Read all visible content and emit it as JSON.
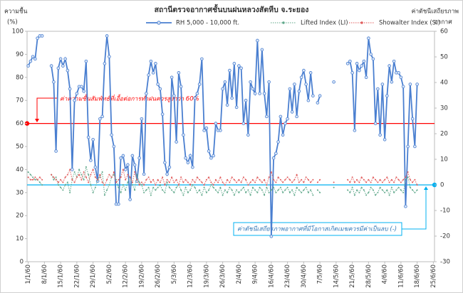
{
  "chart_data": {
    "type": "line",
    "title": "สถานีตรวจอากาศชั้นบนฝนหลวงสัตหีบ จ.ระยอง",
    "y_label": [
      "ความชื้น",
      "(%)"
    ],
    "y2_label": [
      "ค่าดัชนีเสถียรภาพ",
      "อากาศ"
    ],
    "categories": [
      "1/1/60",
      null,
      null,
      null,
      null,
      null,
      null,
      "8/1/60",
      null,
      null,
      null,
      null,
      null,
      null,
      "15/1/60",
      null,
      null,
      null,
      null,
      null,
      null,
      "22/1/60",
      null,
      null,
      null,
      null,
      null,
      null,
      "29/1/60",
      null,
      null,
      null,
      null,
      null,
      null,
      "5/2/60",
      null,
      null,
      null,
      null,
      null,
      null,
      "12/2/60",
      null,
      null,
      null,
      null,
      null,
      null,
      "19/2/60",
      null,
      null,
      null,
      null,
      null,
      null,
      "26/2/60",
      null,
      null,
      null,
      null,
      null,
      null,
      "5/3/60",
      null,
      null,
      null,
      null,
      null,
      null,
      "12/3/60",
      null,
      null,
      null,
      null,
      null,
      null,
      "19/3/60",
      null,
      null,
      null,
      null,
      null,
      null,
      "26/3/60",
      null,
      null,
      null,
      null,
      null,
      null,
      "2/4/60",
      null,
      null,
      null,
      null,
      null,
      null,
      "9/4/60",
      null,
      null,
      null,
      null,
      null,
      null,
      "16/4/60",
      null,
      null,
      null,
      null,
      null,
      null,
      "23/4/60",
      null,
      null,
      null,
      null,
      null,
      null,
      "30/4/60",
      null,
      null,
      null,
      null,
      null,
      null,
      "7/5/60",
      null,
      null,
      null,
      null,
      null,
      null,
      "14/5/60",
      null,
      null,
      null,
      null,
      null,
      null,
      "21/5/60",
      null,
      null,
      null,
      null,
      null,
      null,
      "28/5/60",
      null,
      null,
      null,
      null,
      null,
      null,
      "4/6/60",
      null,
      null,
      null,
      null,
      null,
      null,
      "11/6/60",
      null,
      null,
      null,
      null,
      null,
      null,
      "18/6/60",
      null,
      null,
      null,
      null,
      null,
      null,
      "25/6/60"
    ],
    "series": [
      {
        "name": "RH 5,000 - 10,000 ft.",
        "color": "#4a7fd0",
        "style": "solid",
        "axis": "y",
        "values": [
          85,
          87,
          89,
          88,
          97,
          98,
          98,
          null,
          null,
          null,
          85,
          78,
          48,
          84,
          88,
          85,
          88,
          83,
          75,
          40,
          70,
          73,
          76,
          76,
          74,
          87,
          54,
          44,
          53,
          41,
          35,
          62,
          63,
          86,
          98,
          89,
          55,
          50,
          25,
          25,
          45,
          46,
          40,
          42,
          27,
          46,
          42,
          35,
          45,
          62,
          38,
          73,
          81,
          87,
          82,
          86,
          77,
          75,
          64,
          43,
          38,
          41,
          80,
          72,
          52,
          82,
          76,
          55,
          45,
          43,
          46,
          41,
          71,
          73,
          77,
          88,
          57,
          58,
          48,
          45,
          46,
          60,
          57,
          57,
          75,
          78,
          68,
          83,
          71,
          86,
          67,
          85,
          84,
          60,
          70,
          55,
          78,
          75,
          73,
          96,
          73,
          92,
          73,
          63,
          78,
          11,
          45,
          47,
          52,
          63,
          55,
          60,
          62,
          75,
          65,
          77,
          63,
          74,
          80,
          83,
          77,
          70,
          82,
          72,
          null,
          69,
          72,
          null,
          null,
          null,
          null,
          null,
          78,
          null,
          null,
          null,
          null,
          null,
          86,
          87,
          82,
          57,
          86,
          83,
          85,
          87,
          80,
          97,
          90,
          88,
          60,
          75,
          55,
          77,
          53,
          72,
          85,
          78,
          87,
          82,
          82,
          80,
          76,
          24,
          50,
          77,
          62,
          50,
          77,
          null,
          null,
          null,
          null,
          null,
          null,
          null
        ]
      },
      {
        "name": "Lifted Index (LI)",
        "color": "#5fa88a",
        "style": "dotted",
        "axis": "y2",
        "values": [
          5,
          4,
          3,
          2,
          2,
          1,
          0,
          null,
          null,
          null,
          4,
          2,
          3,
          0,
          -1,
          -2,
          0,
          1,
          -3,
          2,
          5,
          3,
          6,
          4,
          2,
          7,
          4,
          0,
          -3,
          -1,
          2,
          3,
          5,
          -4,
          -2,
          0,
          3,
          4,
          2,
          -1,
          -3,
          0,
          -2,
          1,
          3,
          0,
          -2,
          4,
          1,
          0,
          -3,
          -2,
          -1,
          -4,
          -1,
          -2,
          -1,
          0,
          -2,
          -3,
          1,
          -1,
          -2,
          -3,
          -1,
          0,
          -2,
          -4,
          -1,
          -3,
          -2,
          0,
          -1,
          -3,
          -2,
          -4,
          -1,
          -3,
          -2,
          0,
          -1,
          -2,
          -3,
          -1,
          -4,
          -2,
          -3,
          -1,
          -2,
          -4,
          -2,
          -3,
          -2,
          -1,
          -3,
          -2,
          -4,
          -1,
          -2,
          -3,
          -1,
          -2,
          -4,
          -1,
          -3,
          -2,
          -1,
          -3,
          -2,
          -1,
          -3,
          -2,
          -1,
          -3,
          -2,
          -4,
          -1,
          -2,
          -3,
          -2,
          -1,
          -3,
          -2,
          -4,
          null,
          -2,
          -3,
          null,
          null,
          null,
          null,
          null,
          -1,
          null,
          null,
          null,
          null,
          null,
          -2,
          -3,
          -1,
          -4,
          -2,
          -3,
          -1,
          -2,
          -4,
          -3,
          -1,
          -2,
          -4,
          -3,
          -1,
          -2,
          -3,
          -2,
          -4,
          -1,
          -3,
          -2,
          -1,
          -2,
          -3,
          2,
          3,
          -1,
          -2,
          -3,
          -2,
          null,
          null,
          null,
          null,
          null,
          null,
          null
        ]
      },
      {
        "name": "Showalter Index (SI)",
        "color": "#e05a5a",
        "style": "dotted",
        "axis": "y2",
        "values": [
          3,
          2,
          2,
          3,
          2,
          3,
          2,
          null,
          null,
          null,
          4,
          3,
          2,
          1,
          2,
          1,
          3,
          4,
          6,
          2,
          1,
          3,
          4,
          2,
          5,
          3,
          1,
          4,
          6,
          3,
          2,
          4,
          1,
          0,
          2,
          4,
          3,
          5,
          1,
          2,
          3,
          6,
          2,
          4,
          3,
          1,
          5,
          2,
          0,
          1,
          0,
          2,
          3,
          1,
          2,
          0,
          2,
          1,
          3,
          0,
          2,
          1,
          3,
          1,
          2,
          0,
          3,
          1,
          2,
          1,
          0,
          2,
          1,
          3,
          2,
          1,
          0,
          2,
          3,
          1,
          0,
          2,
          1,
          3,
          1,
          0,
          2,
          1,
          3,
          2,
          1,
          2,
          1,
          3,
          2,
          0,
          1,
          2,
          1,
          3,
          2,
          1,
          2,
          0,
          3,
          5,
          2,
          1,
          3,
          2,
          1,
          2,
          3,
          2,
          1,
          2,
          4,
          1,
          2,
          1,
          3,
          2,
          1,
          2,
          null,
          1,
          2,
          null,
          null,
          null,
          null,
          null,
          1,
          null,
          null,
          null,
          null,
          null,
          2,
          1,
          3,
          1,
          2,
          1,
          3,
          2,
          1,
          2,
          1,
          3,
          2,
          1,
          2,
          1,
          2,
          3,
          1,
          2,
          1,
          3,
          2,
          1,
          2,
          3,
          5,
          2,
          1,
          2,
          0,
          null,
          null,
          null,
          null,
          null,
          null,
          null
        ]
      }
    ],
    "ylim": [
      0,
      100
    ],
    "yticks": [
      0,
      10,
      20,
      30,
      40,
      50,
      60,
      70,
      80,
      90,
      100
    ],
    "y2lim": [
      -30,
      60
    ],
    "y2ticks": [
      -30,
      -20,
      -10,
      0,
      10,
      20,
      30,
      40,
      50,
      60
    ],
    "grid": false,
    "reference_lines": [
      {
        "value": 60,
        "axis": "y",
        "color": "#ff0000",
        "label": "ค่าความชื้นสัมพัทธ์ที่เอื้อต่อการทำฝนควรสูงกว่า 60%"
      },
      {
        "value": 0,
        "axis": "y2",
        "color": "#00b0f0",
        "label": "ค่าดัชนีเสถียรภาพอากาศที่มีโอกาสเกิดเมฆควรมีค่าเป็นลบ (-)"
      }
    ]
  }
}
